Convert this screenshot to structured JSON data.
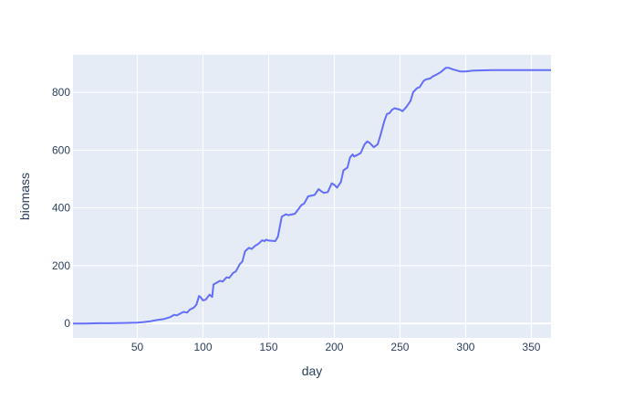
{
  "chart_data": {
    "type": "line",
    "title": "",
    "xlabel": "day",
    "ylabel": "biomass",
    "xlim": [
      1,
      365
    ],
    "ylim": [
      -50,
      930
    ],
    "x_ticks": [
      50,
      100,
      150,
      200,
      250,
      300,
      350
    ],
    "y_ticks": [
      0,
      200,
      400,
      600,
      800
    ],
    "grid": true,
    "legend": "none",
    "colors": {
      "line": "#636efa",
      "plot_bg": "#e5ecf6",
      "grid": "#ffffff",
      "text": "#2a3f5f"
    },
    "series": [
      {
        "x": [
          1,
          10,
          20,
          30,
          40,
          50,
          55,
          60,
          65,
          70,
          75,
          78,
          80,
          83,
          85,
          88,
          90,
          93,
          95,
          97,
          98,
          100,
          102,
          105,
          107,
          108,
          110,
          113,
          115,
          118,
          120,
          123,
          125,
          128,
          130,
          132,
          135,
          137,
          140,
          142,
          145,
          147,
          148,
          150,
          155,
          157,
          160,
          162,
          163,
          165,
          170,
          175,
          177,
          180,
          185,
          188,
          190,
          192,
          195,
          198,
          200,
          202,
          205,
          207,
          210,
          212,
          214,
          215,
          217,
          220,
          223,
          225,
          227,
          230,
          233,
          235,
          238,
          240,
          242,
          244,
          246,
          250,
          252,
          255,
          258,
          260,
          263,
          265,
          268,
          270,
          273,
          275,
          278,
          281,
          285,
          287,
          290,
          293,
          296,
          300,
          305,
          310,
          320,
          330,
          340,
          350,
          365
        ],
        "y": [
          0,
          0,
          1,
          1,
          2,
          3,
          5,
          8,
          12,
          15,
          22,
          30,
          28,
          35,
          40,
          38,
          48,
          55,
          65,
          95,
          92,
          80,
          82,
          100,
          92,
          135,
          140,
          148,
          145,
          160,
          158,
          175,
          180,
          205,
          215,
          250,
          262,
          258,
          270,
          275,
          288,
          285,
          290,
          287,
          285,
          300,
          370,
          375,
          378,
          375,
          380,
          410,
          415,
          440,
          445,
          465,
          458,
          452,
          455,
          485,
          480,
          470,
          490,
          530,
          540,
          575,
          585,
          578,
          582,
          590,
          620,
          630,
          625,
          610,
          620,
          650,
          700,
          725,
          728,
          740,
          745,
          740,
          735,
          750,
          770,
          800,
          815,
          818,
          840,
          845,
          848,
          855,
          862,
          870,
          885,
          885,
          880,
          876,
          872,
          872,
          875,
          876,
          877,
          877,
          877,
          877,
          877
        ]
      }
    ]
  }
}
